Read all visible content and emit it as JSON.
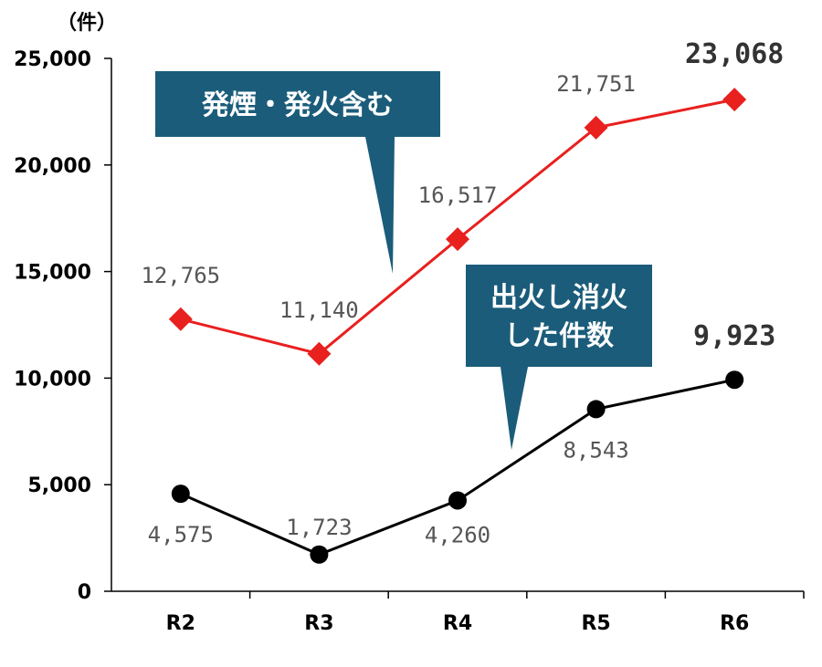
{
  "chart_data": {
    "type": "line",
    "unit_label": "（件）",
    "categories": [
      "R2",
      "R3",
      "R4",
      "R5",
      "R6"
    ],
    "y_ticks": [
      "0",
      "5,000",
      "10,000",
      "15,000",
      "20,000",
      "25,000"
    ],
    "ylim": [
      0,
      25000
    ],
    "grid": false,
    "series": [
      {
        "name": "発煙・発火含む",
        "color": "#e8201e",
        "marker": "diamond",
        "values": [
          12765,
          11140,
          16517,
          21751,
          23068
        ],
        "labels": [
          "12,765",
          "11,140",
          "16,517",
          "21,751",
          "23,068"
        ]
      },
      {
        "name": "出火し消火した件数",
        "color": "#000000",
        "marker": "circle",
        "values": [
          4575,
          1723,
          4260,
          8543,
          9923
        ],
        "labels": [
          "4,575",
          "1,723",
          "4,260",
          "8,543",
          "9,923"
        ]
      }
    ],
    "callouts": [
      {
        "lines": [
          "発煙・発火含む"
        ],
        "color": "#1b5c7a"
      },
      {
        "lines": [
          "出火し消火",
          "した件数"
        ],
        "color": "#1b5c7a"
      }
    ]
  }
}
